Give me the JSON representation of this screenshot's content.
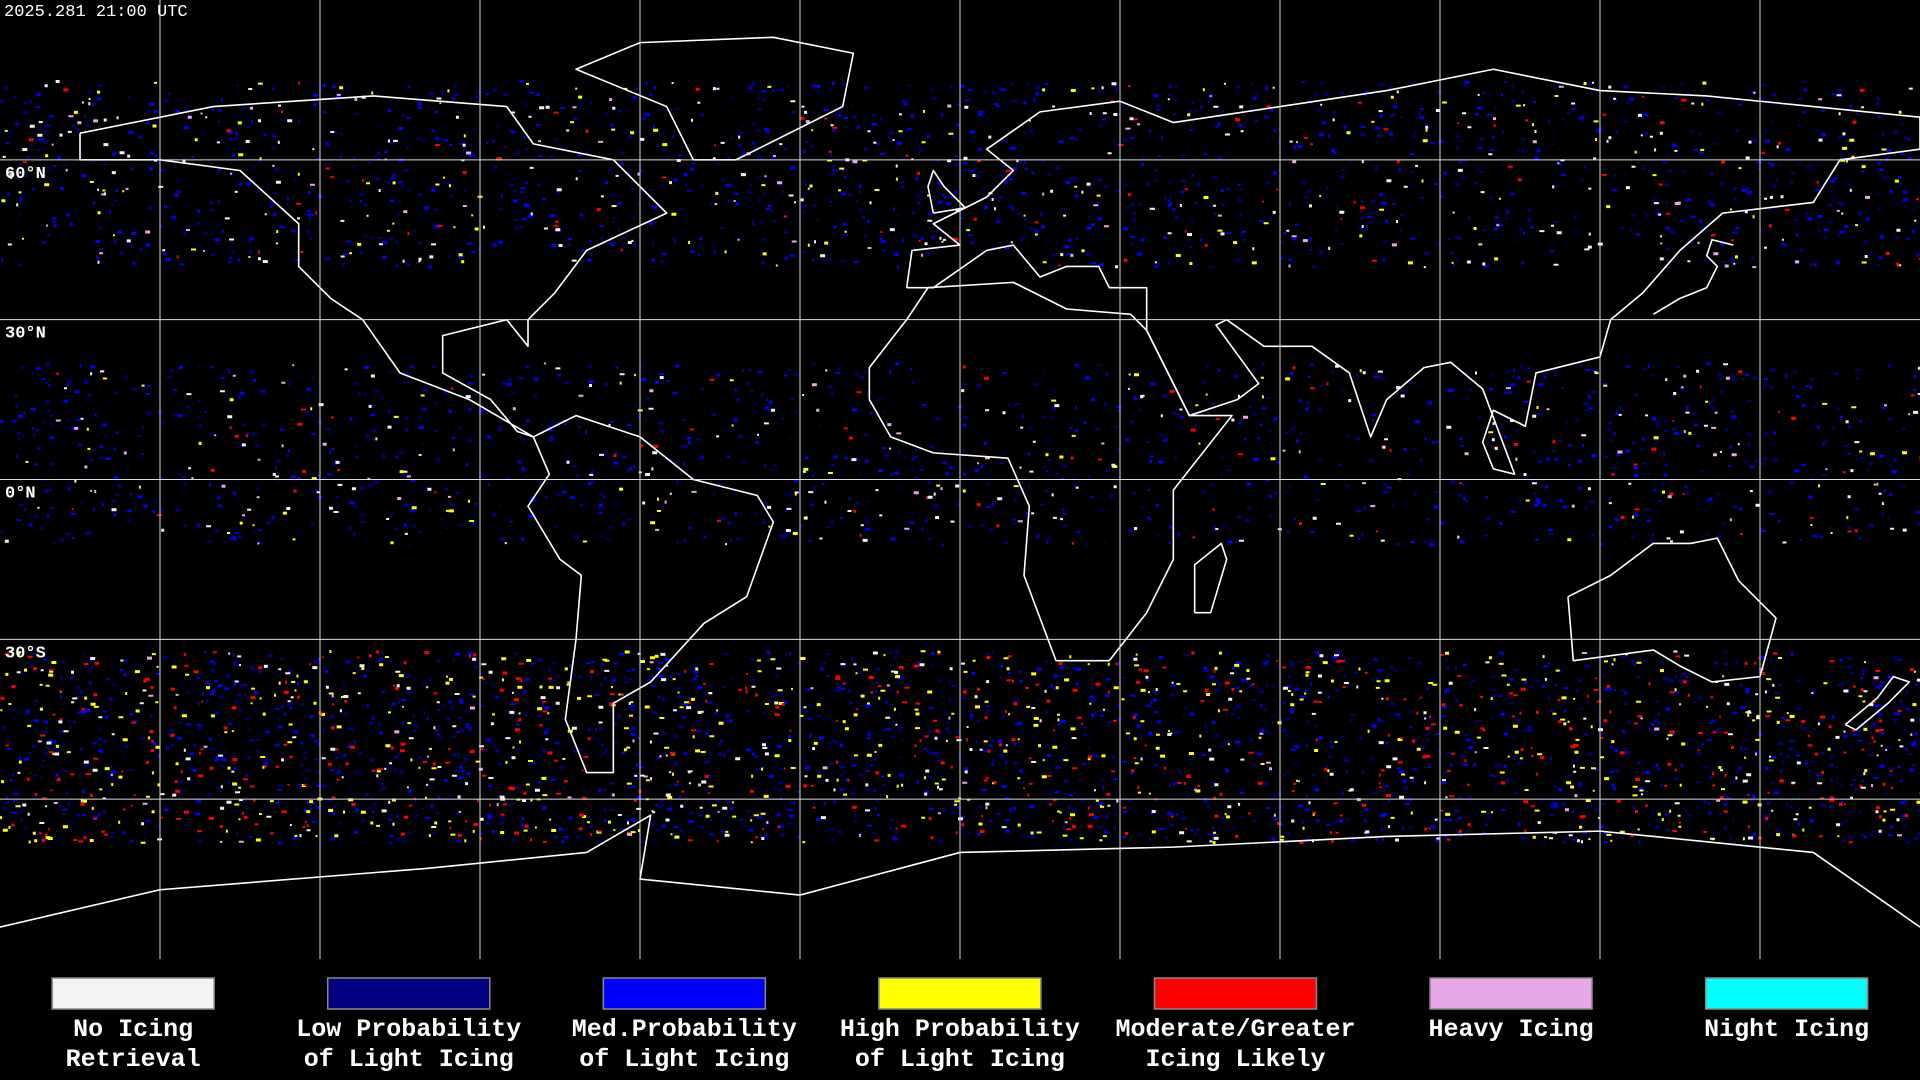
{
  "header": {
    "timestamp": "2025.281 21:00 UTC"
  },
  "latitude_labels": [
    {
      "label": "60°N",
      "lat": 60
    },
    {
      "label": "30°N",
      "lat": 30
    },
    {
      "label": "0°N",
      "lat": 0
    },
    {
      "label": "30°S",
      "lat": -30
    }
  ],
  "legend": [
    {
      "lines": [
        "No Icing",
        "Retrieval"
      ],
      "color": "#f2f2f2"
    },
    {
      "lines": [
        "Low Probability",
        "of Light Icing"
      ],
      "color": "#000080"
    },
    {
      "lines": [
        "Med.Probability",
        "of Light Icing"
      ],
      "color": "#0000ff"
    },
    {
      "lines": [
        "High Probability",
        "of Light Icing"
      ],
      "color": "#ffff00"
    },
    {
      "lines": [
        "Moderate/Greater",
        "Icing Likely"
      ],
      "color": "#ff0000"
    },
    {
      "lines": [
        "Heavy Icing"
      ],
      "color": "#e8a8e8"
    },
    {
      "lines": [
        "Night Icing"
      ],
      "color": "#00ffff"
    }
  ]
}
